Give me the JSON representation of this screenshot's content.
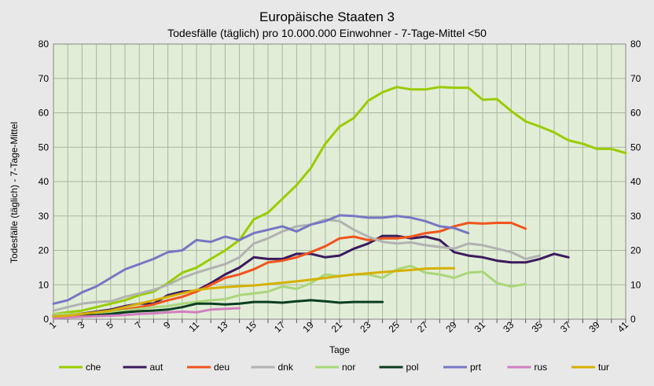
{
  "chart_data": {
    "type": "line",
    "title": "Europäische Staaten 3",
    "subtitle": "Todesfälle (täglich) pro 10.000.000 Einwohner - 7-Tage-Mittel <50",
    "xlabel": "Tage",
    "ylabel": "Todesfälle (täglich) - 7-Tage-Mittel",
    "xlim": [
      1,
      41
    ],
    "ylim": [
      0,
      80
    ],
    "x_ticks": [
      "1",
      "3",
      "5",
      "7",
      "9",
      "11",
      "13",
      "15",
      "17",
      "19",
      "21",
      "23",
      "25",
      "27",
      "29",
      "31",
      "33",
      "35",
      "37",
      "39",
      "41"
    ],
    "y_ticks": [
      "0",
      "10",
      "20",
      "30",
      "40",
      "50",
      "60",
      "70",
      "80"
    ],
    "grid": true,
    "legend_position": "bottom",
    "plot_background": "#e1edd6",
    "series": [
      {
        "name": "che",
        "color": "#99cc00",
        "x_start": 1,
        "values": [
          1.5,
          2,
          2.5,
          3.5,
          4.5,
          5.5,
          7,
          8,
          10.5,
          13.5,
          15,
          17.5,
          20,
          23,
          29,
          31,
          35,
          39,
          44,
          51,
          56,
          58.5,
          63.5,
          66,
          67.5,
          66.8,
          66.8,
          67.5,
          67.3,
          67.3,
          63.8,
          64,
          60.5,
          57.5,
          56,
          54.3,
          52,
          51,
          49.5,
          49.5,
          48.3
        ]
      },
      {
        "name": "aut",
        "color": "#3b1a5e",
        "x_start": 1,
        "values": [
          1,
          1.3,
          1.6,
          2.2,
          2.8,
          3.8,
          4.5,
          4.5,
          7,
          8,
          8.3,
          10.5,
          13,
          15,
          18,
          17.5,
          17.5,
          19,
          19,
          18,
          18.5,
          20.5,
          22,
          24.2,
          24.2,
          23.5,
          24,
          23,
          19.5,
          18.5,
          18,
          17,
          16.5,
          16.5,
          17.5,
          19,
          18
        ]
      },
      {
        "name": "deu",
        "color": "#f0541e",
        "x_start": 1,
        "values": [
          0.8,
          1,
          1.2,
          1.5,
          2,
          2.8,
          3.5,
          4.3,
          5.5,
          6.5,
          8,
          10,
          12,
          13,
          14.5,
          16.5,
          17,
          18,
          19.5,
          21.2,
          23.5,
          24,
          23,
          23.5,
          23.5,
          24,
          25,
          25.5,
          27,
          28,
          27.8,
          28,
          28,
          26.3
        ]
      },
      {
        "name": "dnk",
        "color": "#b2b2b2",
        "x_start": 1,
        "values": [
          2.5,
          3.5,
          4.5,
          5,
          5.2,
          6.5,
          7.5,
          8.5,
          10,
          12,
          13.5,
          14.8,
          16,
          18,
          22,
          23.5,
          25.5,
          27,
          27.5,
          29,
          28.5,
          26,
          24,
          22.5,
          22,
          22.3,
          21.5,
          21,
          20.5,
          22,
          21.5,
          20.5,
          19.5,
          17.5,
          18.5
        ]
      },
      {
        "name": "nor",
        "color": "#aad67a",
        "x_start": 1,
        "values": [
          1.5,
          1.5,
          1.5,
          1.8,
          2,
          2.5,
          3,
          3.5,
          3.8,
          4.5,
          5,
          5.5,
          5.8,
          7,
          7.5,
          8,
          9.5,
          8.8,
          10.5,
          13,
          12.5,
          13,
          13,
          12,
          14.5,
          15.5,
          13.5,
          13,
          12,
          13.5,
          13.8,
          10.5,
          9.5,
          10.2
        ]
      },
      {
        "name": "pol",
        "color": "#0a3d1f",
        "x_start": 1,
        "values": [
          0.5,
          0.8,
          1,
          1.2,
          1.5,
          2,
          2.3,
          2.5,
          2.8,
          3.5,
          4.5,
          4.5,
          4.3,
          4.5,
          5,
          5,
          4.8,
          5.2,
          5.5,
          5.2,
          4.8,
          5,
          5,
          5
        ]
      },
      {
        "name": "prt",
        "color": "#7777c4",
        "x_start": 1,
        "values": [
          4.5,
          5.5,
          7.8,
          9.5,
          12,
          14.5,
          16,
          17.5,
          19.5,
          20,
          23,
          22.5,
          24,
          23,
          25,
          26,
          27,
          25.5,
          27.5,
          28.5,
          30.2,
          30,
          29.5,
          29.5,
          30,
          29.5,
          28.5,
          27,
          26.5,
          25
        ]
      },
      {
        "name": "rus",
        "color": "#d17fc0",
        "x_start": 1,
        "values": [
          0.3,
          0.5,
          0.7,
          0.9,
          1,
          1.2,
          1.5,
          1.7,
          2,
          2.2,
          2,
          2.8,
          3,
          3.2
        ]
      },
      {
        "name": "tur",
        "color": "#d6b000",
        "x_start": 1,
        "values": [
          0.8,
          1,
          1.5,
          2,
          2.5,
          3.5,
          4.5,
          5.5,
          6.5,
          7.5,
          8.5,
          9,
          9.3,
          9.6,
          9.8,
          10.2,
          10.6,
          11,
          11.5,
          12,
          12.5,
          13,
          13.3,
          13.7,
          14,
          14.3,
          14.7,
          14.8,
          14.8
        ]
      }
    ]
  }
}
